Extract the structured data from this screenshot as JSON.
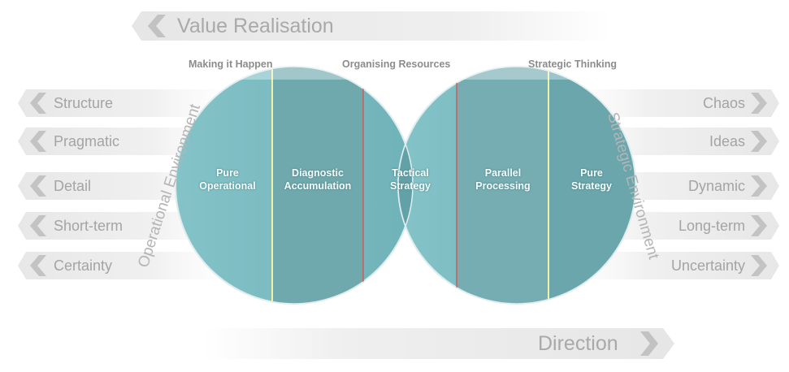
{
  "title": "Value Realisation",
  "direction": "Direction",
  "environments": {
    "operational": "Operational Environment",
    "strategic": "Strategic Environment"
  },
  "top_labels": {
    "making_it_happen": "Making it Happen",
    "organising_resources": "Organising Resources",
    "strategic_thinking": "Strategic Thinking"
  },
  "left_items": [
    "Structure",
    "Pragmatic",
    "Detail",
    "Short-term",
    "Certainty"
  ],
  "right_items": [
    "Chaos",
    "Ideas",
    "Dynamic",
    "Long-term",
    "Uncertainty"
  ],
  "segments": [
    {
      "label": "Pure Operational"
    },
    {
      "label": "Diagnostic Accumulation"
    },
    {
      "label": "Tactical Strategy"
    },
    {
      "label": "Parallel Processing"
    },
    {
      "label": "Pure Strategy"
    }
  ],
  "colors": {
    "circle_fill": "#7fbcc2",
    "lens_fill": "#5f9ea5",
    "banner_fill": "#eeeeee",
    "chevron": "#c7c7c7",
    "divider_red": "#d35a5a",
    "divider_yellow": "#f2f0a6"
  }
}
